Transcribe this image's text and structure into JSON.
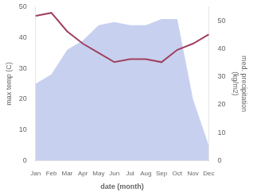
{
  "chart_data": {
    "type": "line",
    "categories": [
      "Jan",
      "Feb",
      "Mar",
      "Apr",
      "May",
      "Jun",
      "Jul",
      "Aug",
      "Sep",
      "Oct",
      "Nov",
      "Dec"
    ],
    "series": [
      {
        "type": "area",
        "color": "#b0bce8",
        "values": [
          25,
          28,
          36,
          39,
          44,
          45,
          44,
          44,
          46,
          46,
          20,
          5
        ]
      },
      {
        "type": "line",
        "color": "#a04060",
        "values": [
          47,
          48,
          42,
          38,
          35,
          32,
          33,
          33,
          32,
          36,
          38,
          41
        ]
      }
    ],
    "xlabel": "date (month)",
    "ylabel": "max temp (C)",
    "y2label": "med. precipitation\n(kg/m2)",
    "ylim": [
      0,
      50
    ],
    "yticks": [
      0,
      10,
      20,
      30,
      40,
      50
    ],
    "y2lim": [
      0,
      55
    ],
    "y2ticks": [
      0,
      10,
      20,
      30,
      40,
      50
    ],
    "grid": false
  }
}
